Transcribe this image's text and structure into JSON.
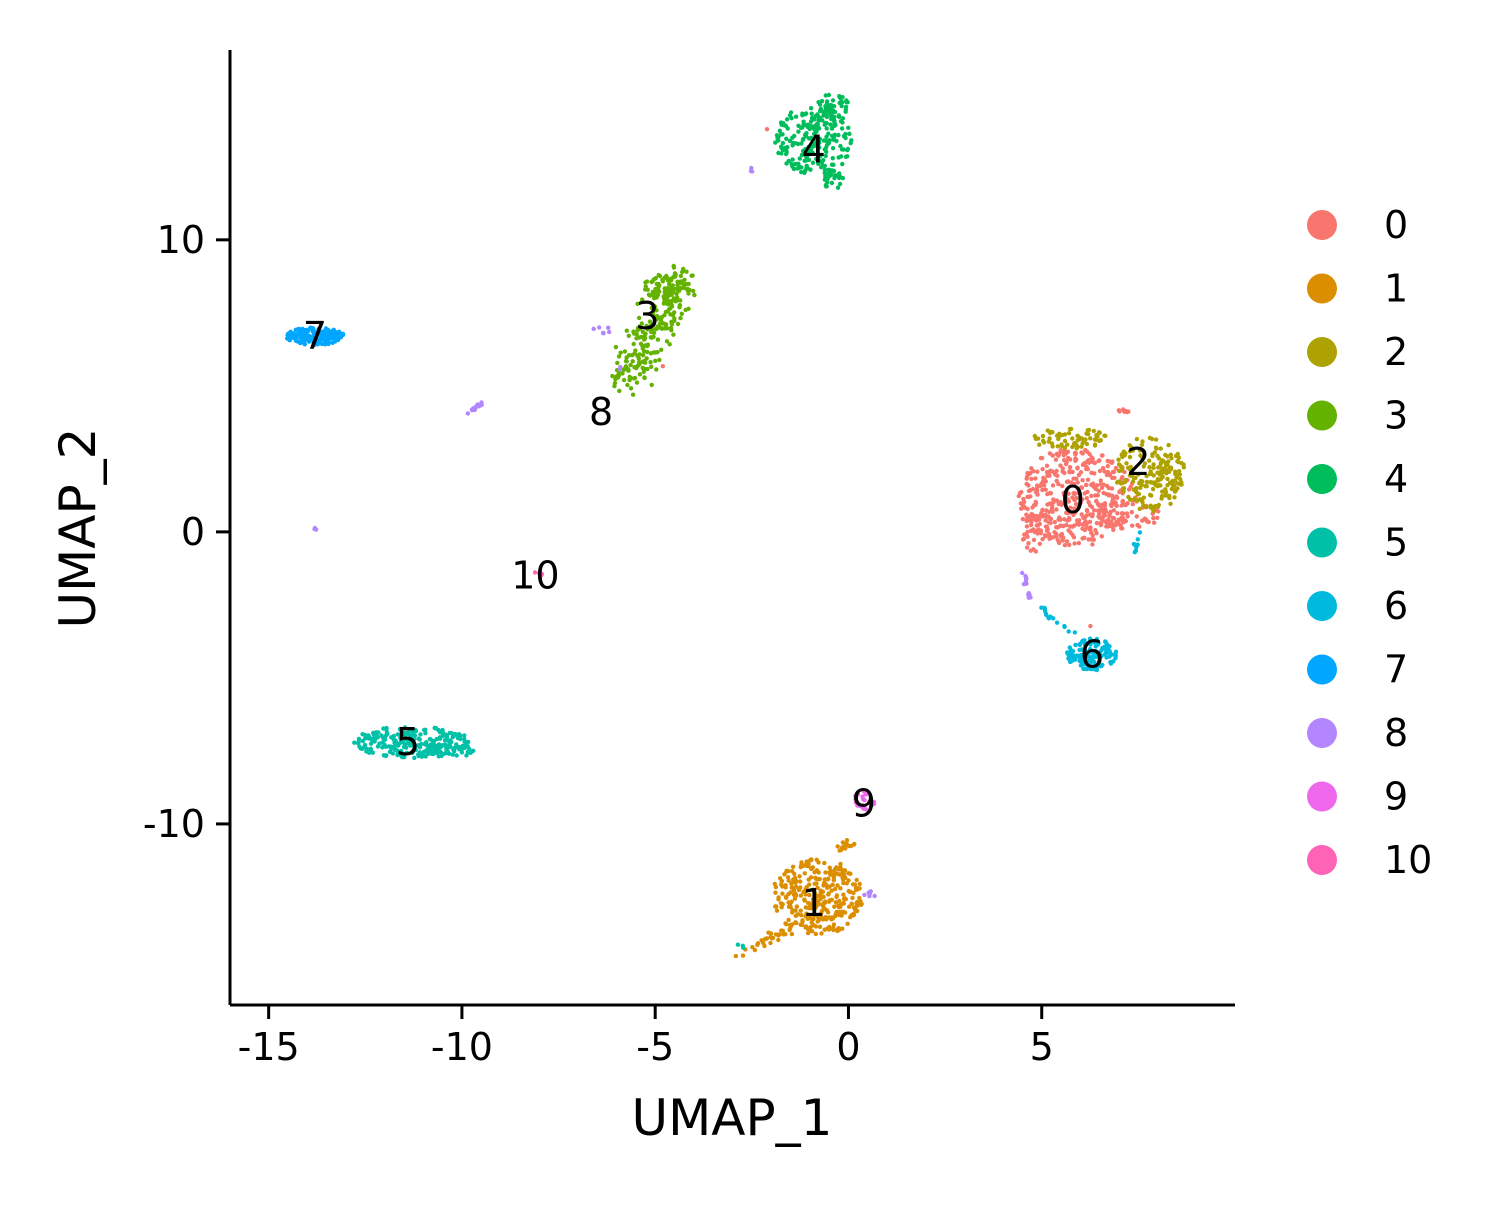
{
  "chart_data": {
    "type": "scatter",
    "title": "",
    "xlabel": "UMAP_1",
    "ylabel": "UMAP_2",
    "xlim": [
      -16,
      10
    ],
    "ylim": [
      -16.2,
      16.5
    ],
    "xticks": [
      -15,
      -10,
      -5,
      0,
      5
    ],
    "xtick_labels": [
      "-15",
      "-10",
      "-5",
      "0",
      "5"
    ],
    "yticks": [
      -10,
      0,
      10
    ],
    "ytick_labels": [
      "-10",
      "0",
      "10"
    ],
    "grid": false,
    "legend_position": "right",
    "point_size": 2.2,
    "legend": [
      {
        "label": "0",
        "color": "#F8766D"
      },
      {
        "label": "1",
        "color": "#DB8E00"
      },
      {
        "label": "2",
        "color": "#AEA200"
      },
      {
        "label": "3",
        "color": "#64B200"
      },
      {
        "label": "4",
        "color": "#00BD5C"
      },
      {
        "label": "5",
        "color": "#00C1A7"
      },
      {
        "label": "6",
        "color": "#00BADE"
      },
      {
        "label": "7",
        "color": "#00A6FF"
      },
      {
        "label": "8",
        "color": "#B385FF"
      },
      {
        "label": "9",
        "color": "#EF67EB"
      },
      {
        "label": "10",
        "color": "#FF63B6"
      }
    ],
    "cluster_labels": [
      {
        "text": "0",
        "x": 5.8,
        "y": 1.1
      },
      {
        "text": "1",
        "x": -0.9,
        "y": -12.7
      },
      {
        "text": "2",
        "x": 7.5,
        "y": 2.4
      },
      {
        "text": "3",
        "x": -5.2,
        "y": 7.4
      },
      {
        "text": "4",
        "x": -0.9,
        "y": 13.1
      },
      {
        "text": "5",
        "x": -11.4,
        "y": -7.2
      },
      {
        "text": "6",
        "x": 6.3,
        "y": -4.2
      },
      {
        "text": "7",
        "x": -13.8,
        "y": 6.7
      },
      {
        "text": "8",
        "x": -6.4,
        "y": 4.1
      },
      {
        "text": "9",
        "x": 0.4,
        "y": -9.3
      },
      {
        "text": "10",
        "x": -8.1,
        "y": -1.5
      }
    ],
    "clusters": [
      {
        "name": "0",
        "shape": "blob",
        "cx": 5.9,
        "cy": 1.2,
        "rx": 1.5,
        "ry": 1.7,
        "n": 420
      },
      {
        "name": "0",
        "shape": "blob",
        "cx": 4.8,
        "cy": 0.2,
        "rx": 0.35,
        "ry": 0.9,
        "n": 40
      },
      {
        "name": "0",
        "shape": "blob",
        "cx": 7.2,
        "cy": 0.6,
        "rx": 0.9,
        "ry": 0.6,
        "n": 60
      },
      {
        "name": "0",
        "shape": "blob",
        "cx": 7.1,
        "cy": 4.1,
        "rx": 0.15,
        "ry": 0.1,
        "n": 8
      },
      {
        "name": "0",
        "shape": "blob",
        "cx": 6.3,
        "cy": -3.2,
        "rx": 0.05,
        "ry": 0.05,
        "n": 1
      },
      {
        "name": "0",
        "shape": "blob",
        "cx": -4.8,
        "cy": 5.7,
        "rx": 0.05,
        "ry": 0.05,
        "n": 1
      },
      {
        "name": "0",
        "shape": "blob",
        "cx": -2.1,
        "cy": 13.8,
        "rx": 0.05,
        "ry": 0.05,
        "n": 1
      },
      {
        "name": "1",
        "shape": "blob",
        "cx": -0.8,
        "cy": -12.5,
        "rx": 1.2,
        "ry": 1.3,
        "n": 320
      },
      {
        "name": "1",
        "shape": "line",
        "x1": -2.8,
        "y1": -14.5,
        "x2": -1.4,
        "y2": -13.5,
        "spread": 0.18,
        "n": 30
      },
      {
        "name": "1",
        "shape": "line",
        "x1": -0.3,
        "y1": -11.0,
        "x2": 0.2,
        "y2": -10.4,
        "spread": 0.15,
        "n": 15
      },
      {
        "name": "2",
        "shape": "blob",
        "cx": 7.8,
        "cy": 2.0,
        "rx": 0.9,
        "ry": 1.3,
        "n": 170
      },
      {
        "name": "2",
        "shape": "blob",
        "cx": 5.7,
        "cy": 3.2,
        "rx": 1.0,
        "ry": 0.35,
        "n": 70
      },
      {
        "name": "2",
        "shape": "blob",
        "cx": 8.3,
        "cy": 1.8,
        "rx": 0.3,
        "ry": 0.5,
        "n": 30
      },
      {
        "name": "3",
        "shape": "line",
        "x1": -5.8,
        "y1": 5.1,
        "x2": -4.2,
        "y2": 8.8,
        "spread": 0.55,
        "n": 230
      },
      {
        "name": "3",
        "shape": "blob",
        "cx": -4.7,
        "cy": 8.4,
        "rx": 0.6,
        "ry": 0.5,
        "n": 60
      },
      {
        "name": "4",
        "shape": "blob",
        "cx": -0.9,
        "cy": 13.4,
        "rx": 1.0,
        "ry": 1.2,
        "n": 220
      },
      {
        "name": "4",
        "shape": "blob",
        "cx": -0.4,
        "cy": 14.6,
        "rx": 0.4,
        "ry": 0.4,
        "n": 40
      },
      {
        "name": "4",
        "shape": "blob",
        "cx": -0.4,
        "cy": 12.1,
        "rx": 0.3,
        "ry": 0.35,
        "n": 25
      },
      {
        "name": "5",
        "shape": "blob",
        "cx": -11.3,
        "cy": -7.2,
        "rx": 1.5,
        "ry": 0.55,
        "n": 230
      },
      {
        "name": "5",
        "shape": "blob",
        "cx": -10.3,
        "cy": -7.5,
        "rx": 0.6,
        "ry": 0.25,
        "n": 40
      },
      {
        "name": "5",
        "shape": "blob",
        "cx": -2.8,
        "cy": -14.2,
        "rx": 0.1,
        "ry": 0.1,
        "n": 3
      },
      {
        "name": "6",
        "shape": "blob",
        "cx": 6.3,
        "cy": -4.2,
        "rx": 0.65,
        "ry": 0.55,
        "n": 140
      },
      {
        "name": "6",
        "shape": "line",
        "x1": 5.0,
        "y1": -2.6,
        "x2": 5.8,
        "y2": -3.6,
        "spread": 0.1,
        "n": 15
      },
      {
        "name": "6",
        "shape": "line",
        "x1": 7.5,
        "y1": 0.0,
        "x2": 7.4,
        "y2": -0.7,
        "spread": 0.06,
        "n": 8
      },
      {
        "name": "7",
        "shape": "blob",
        "cx": -13.8,
        "cy": 6.7,
        "rx": 0.75,
        "ry": 0.3,
        "n": 180
      },
      {
        "name": "8",
        "shape": "line",
        "x1": -9.9,
        "y1": 4.0,
        "x2": -9.5,
        "y2": 4.4,
        "spread": 0.05,
        "n": 12
      },
      {
        "name": "8",
        "shape": "line",
        "x1": 4.5,
        "y1": -1.2,
        "x2": 4.7,
        "y2": -2.3,
        "spread": 0.08,
        "n": 14
      },
      {
        "name": "8",
        "shape": "blob",
        "cx": -6.4,
        "cy": 6.9,
        "rx": 0.25,
        "ry": 0.15,
        "n": 6
      },
      {
        "name": "8",
        "shape": "blob",
        "cx": 0.5,
        "cy": -12.4,
        "rx": 0.2,
        "ry": 0.15,
        "n": 6
      },
      {
        "name": "8",
        "shape": "blob",
        "cx": -2.5,
        "cy": 12.4,
        "rx": 0.08,
        "ry": 0.06,
        "n": 3
      },
      {
        "name": "8",
        "shape": "blob",
        "cx": -13.8,
        "cy": 0.1,
        "rx": 0.05,
        "ry": 0.05,
        "n": 3
      },
      {
        "name": "8",
        "shape": "blob",
        "cx": -5.9,
        "cy": 5.6,
        "rx": 0.05,
        "ry": 0.05,
        "n": 2
      },
      {
        "name": "9",
        "shape": "blob",
        "cx": 0.4,
        "cy": -9.2,
        "rx": 0.3,
        "ry": 0.35,
        "n": 28
      },
      {
        "name": "10",
        "shape": "line",
        "x1": -8.2,
        "y1": -1.3,
        "x2": -7.9,
        "y2": -1.5,
        "spread": 0.04,
        "n": 6
      }
    ]
  }
}
